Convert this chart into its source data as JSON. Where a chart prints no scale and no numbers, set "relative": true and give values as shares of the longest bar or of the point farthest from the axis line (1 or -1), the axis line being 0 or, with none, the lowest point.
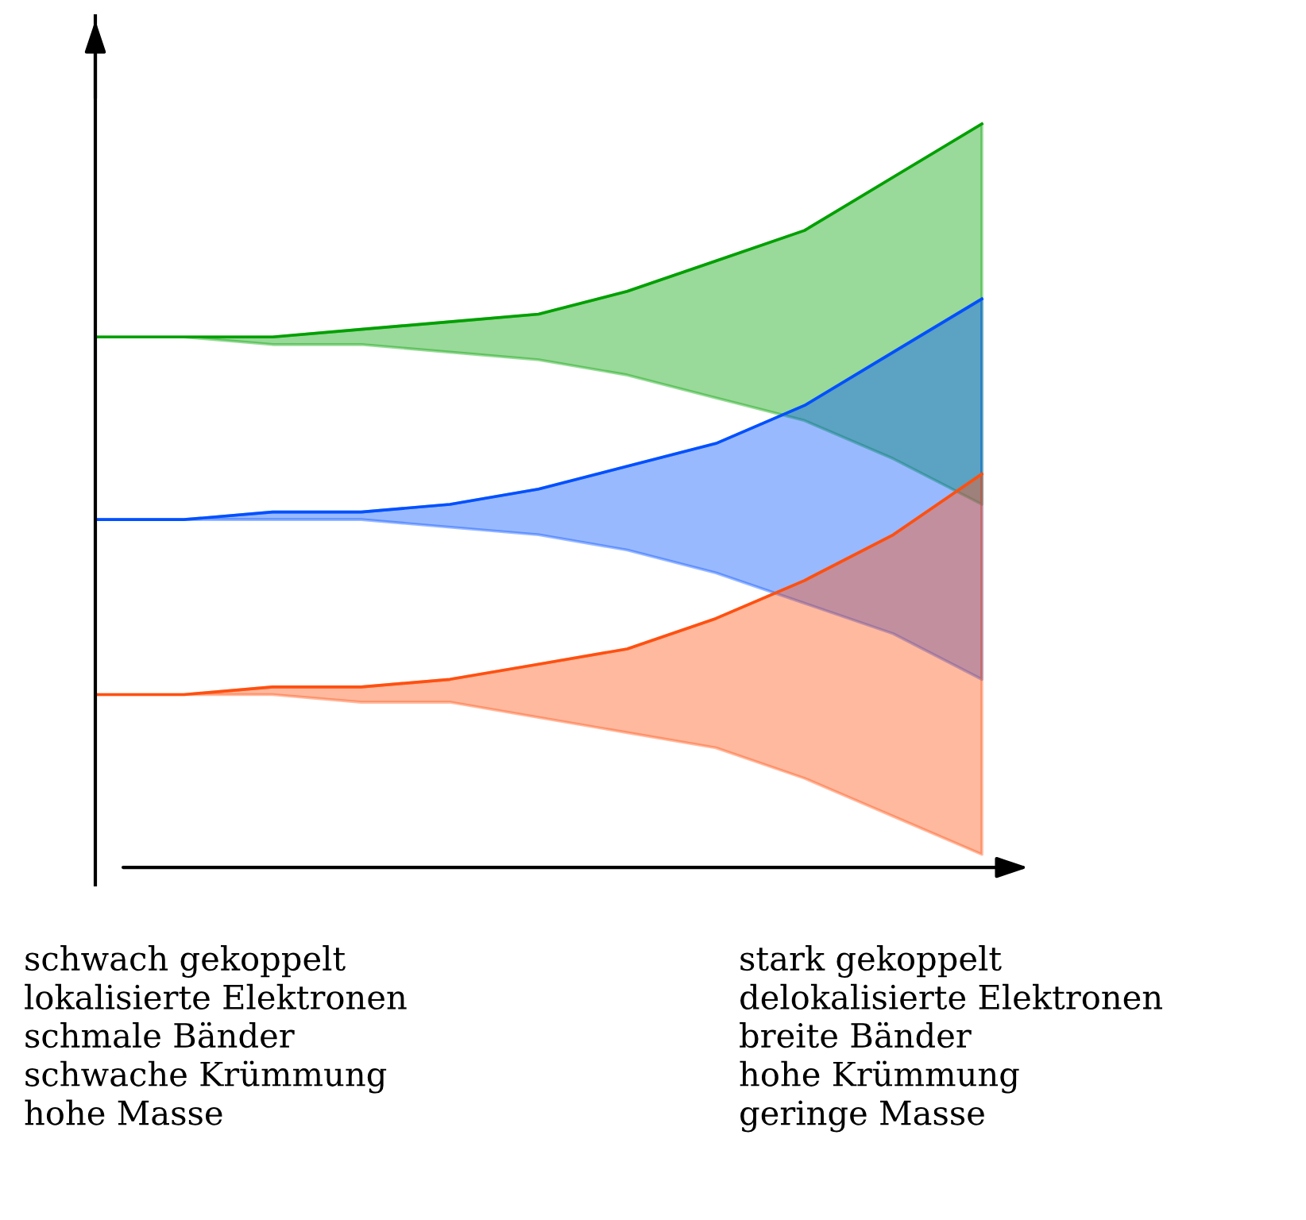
{
  "chart_data": {
    "type": "line",
    "relative": true,
    "categories": [
      null,
      null,
      null,
      null,
      null,
      null,
      null,
      null,
      null,
      null,
      null
    ],
    "series": [
      {
        "color": "#00a000",
        "values": [
          0.72,
          0.72,
          0.72,
          0.73,
          0.74,
          0.75,
          0.78,
          0.82,
          0.86,
          0.93,
          1.0
        ],
        "upper": [
          0.72,
          0.72,
          0.72,
          0.73,
          0.74,
          0.75,
          0.78,
          0.82,
          0.86,
          0.93,
          1.0
        ],
        "lower": [
          0.72,
          0.72,
          0.71,
          0.71,
          0.7,
          0.69,
          0.67,
          0.64,
          0.61,
          0.56,
          0.5
        ]
      },
      {
        "color": "#0050ff",
        "values": [
          0.48,
          0.48,
          0.49,
          0.49,
          0.5,
          0.52,
          0.55,
          0.58,
          0.63,
          0.7,
          0.77
        ],
        "upper": [
          0.48,
          0.48,
          0.49,
          0.49,
          0.5,
          0.52,
          0.55,
          0.58,
          0.63,
          0.7,
          0.77
        ],
        "lower": [
          0.48,
          0.48,
          0.48,
          0.48,
          0.47,
          0.46,
          0.44,
          0.41,
          0.37,
          0.33,
          0.27
        ]
      },
      {
        "color": "#ff5010",
        "values": [
          0.25,
          0.25,
          0.26,
          0.26,
          0.27,
          0.29,
          0.31,
          0.35,
          0.4,
          0.46,
          0.54
        ],
        "upper": [
          0.25,
          0.25,
          0.26,
          0.26,
          0.27,
          0.29,
          0.31,
          0.35,
          0.4,
          0.46,
          0.54
        ],
        "lower": [
          0.25,
          0.25,
          0.25,
          0.24,
          0.24,
          0.22,
          0.2,
          0.18,
          0.14,
          0.09,
          0.04
        ]
      }
    ],
    "annotations": [
      "schwach gekoppelt\nlokalisierte Elektronen\nschmale Bänder\nschwache Krümmung\nhohe Masse",
      "stark gekoppelt\ndelokalisierte Elektronen\nbreite Bänder\nhohe Krümmung\ngeringe Masse"
    ]
  }
}
